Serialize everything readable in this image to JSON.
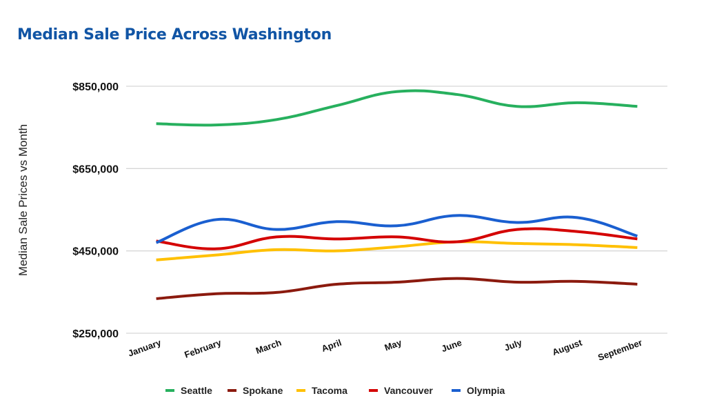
{
  "chart_data": {
    "type": "line",
    "title": "Median Sale Price Across Washington",
    "xlabel": "",
    "ylabel": "Median Sale Prices vs Month",
    "categories": [
      "January",
      "February",
      "March",
      "April",
      "May",
      "June",
      "July",
      "August",
      "September"
    ],
    "ylim": [
      250000,
      850000
    ],
    "yticks": [
      250000,
      450000,
      650000,
      850000
    ],
    "ytick_labels": [
      "$250,000",
      "$450,000",
      "$650,000",
      "$850,000"
    ],
    "grid": true,
    "smooth": true,
    "legend_position": "bottom",
    "series": [
      {
        "name": "Seattle",
        "color": "#27b05e",
        "values": [
          759000,
          756000,
          769000,
          803000,
          837000,
          830000,
          801000,
          810000,
          801000
        ]
      },
      {
        "name": "Spokane",
        "color": "#8b1a0e",
        "values": [
          334000,
          346000,
          349000,
          369000,
          374000,
          383000,
          374000,
          376000,
          369000
        ]
      },
      {
        "name": "Tacoma",
        "color": "#ffc000",
        "values": [
          428000,
          440000,
          453000,
          450000,
          460000,
          472000,
          468000,
          465000,
          458000
        ]
      },
      {
        "name": "Vancouver",
        "color": "#d40000",
        "values": [
          474000,
          455000,
          484000,
          479000,
          484000,
          472000,
          502000,
          497000,
          479000
        ]
      },
      {
        "name": "Olympia",
        "color": "#1a5fd0",
        "values": [
          470000,
          526000,
          502000,
          521000,
          511000,
          536000,
          519000,
          531000,
          486000
        ]
      }
    ]
  }
}
